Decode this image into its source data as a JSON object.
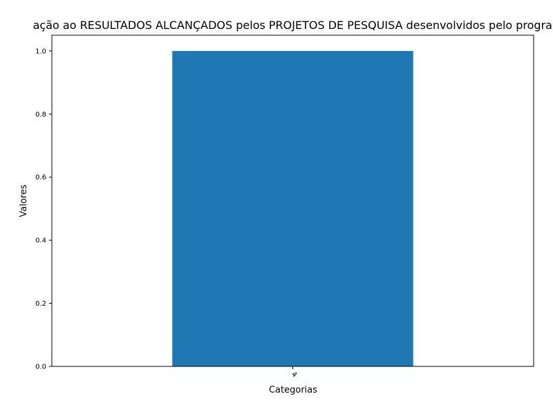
{
  "chart_data": {
    "type": "bar",
    "title": "ação ao RESULTADOS ALCANÇADOS pelos PROJETOS DE PESQUISA desenvolvidos pelo programa",
    "xlabel": "Categorias",
    "ylabel": "Valores",
    "categories": [
      "4"
    ],
    "values": [
      1.0
    ],
    "ylim": [
      0,
      1.05
    ],
    "yticks": [
      "0.0",
      "0.2",
      "0.4",
      "0.6",
      "0.8",
      "1.0"
    ],
    "grid": false,
    "bar_color": "#1f77b4"
  }
}
